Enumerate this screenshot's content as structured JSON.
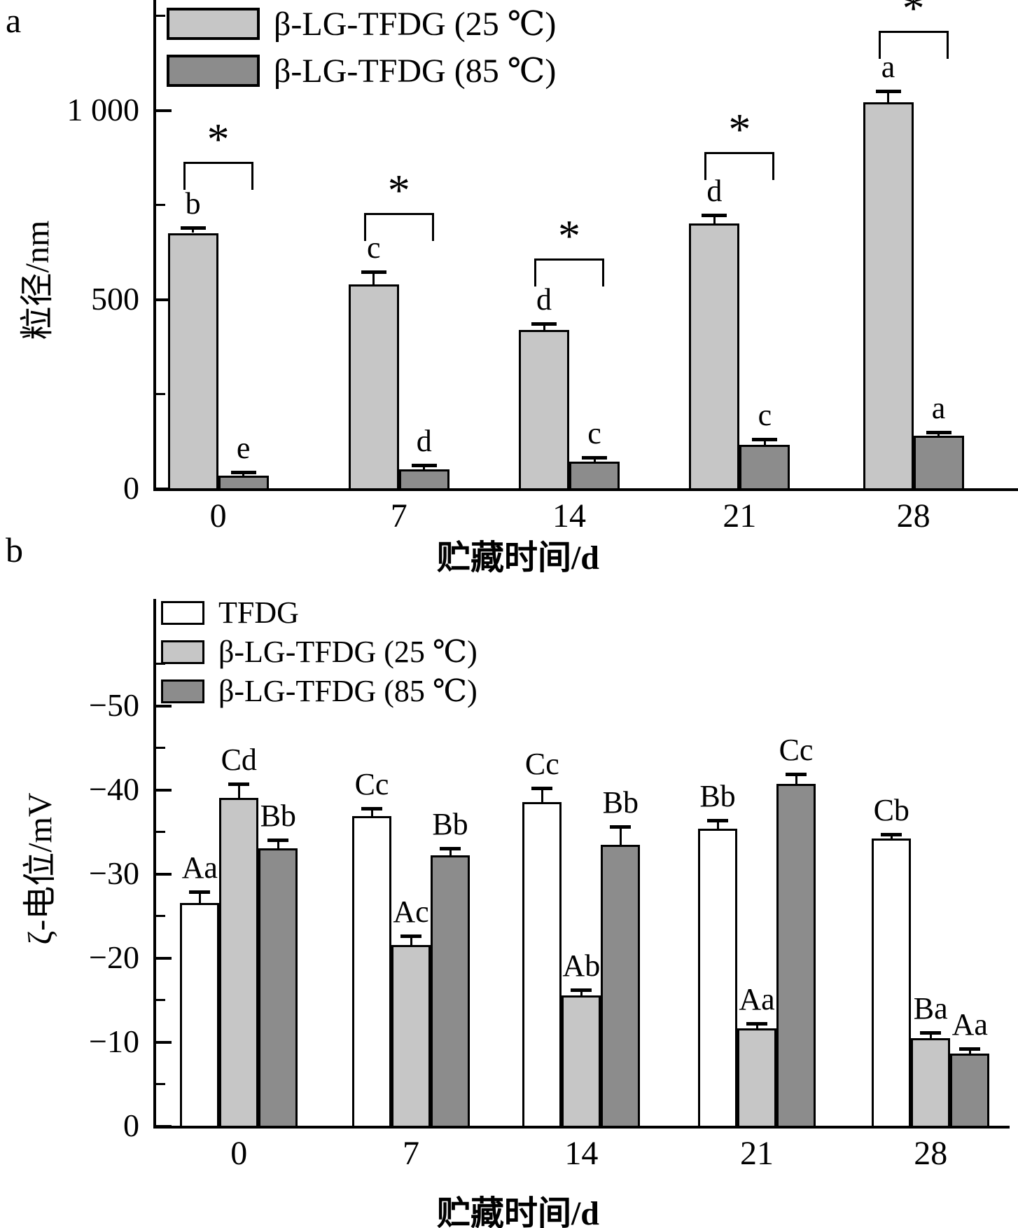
{
  "figure": {
    "panel_a_letter": "a",
    "panel_b_letter": "b",
    "colors": {
      "white": "#ffffff",
      "light_gray": "#c6c6c6",
      "dark_gray": "#8c8c8c",
      "outline": "#000000"
    }
  },
  "chart_data": [
    {
      "panel": "a",
      "type": "bar",
      "title": "",
      "xlabel": "贮藏时间/d",
      "ylabel": "粒径/nm",
      "categories": [
        "0",
        "7",
        "14",
        "21",
        "28"
      ],
      "ylim": [
        0,
        1290
      ],
      "yticks_major": [
        0,
        500,
        1000
      ],
      "ytick_labels": [
        "0",
        "500",
        "1 000"
      ],
      "yticks_minor": [
        250,
        750,
        1250
      ],
      "grid": false,
      "legend_position": "top-left-inside",
      "series": [
        {
          "name": "β-LG-TFDG (25 ℃)",
          "color_key": "light_gray",
          "values": [
            675,
            538,
            419,
            700,
            1020
          ],
          "errors": [
            10,
            30,
            12,
            18,
            26
          ],
          "letters": [
            "b",
            "c",
            "d",
            "d",
            "a"
          ]
        },
        {
          "name": "β-LG-TFDG (85 ℃)",
          "color_key": "dark_gray",
          "values": [
            33,
            50,
            70,
            115,
            138
          ],
          "errors": [
            5,
            8,
            8,
            11,
            6
          ],
          "letters": [
            "e",
            "d",
            "c",
            "c",
            "a"
          ]
        }
      ],
      "significance": {
        "symbol": "*",
        "pairs_at_categories": [
          "0",
          "7",
          "14",
          "21",
          "28"
        ]
      }
    },
    {
      "panel": "b",
      "type": "bar",
      "title": "",
      "xlabel": "贮藏时间/d",
      "ylabel": "ζ-电位/mV",
      "categories": [
        "0",
        "7",
        "14",
        "21",
        "28"
      ],
      "ylim": [
        0,
        -62
      ],
      "axis_inverted": true,
      "yticks_major": [
        0,
        -10,
        -20,
        -30,
        -40,
        -50
      ],
      "ytick_labels": [
        "0",
        "−10",
        "−20",
        "−30",
        "−40",
        "−50"
      ],
      "yticks_minor": [
        -5,
        -15,
        -25,
        -35,
        -45,
        -55
      ],
      "grid": false,
      "legend_position": "top-left-inside",
      "series": [
        {
          "name": "TFDG",
          "color_key": "white",
          "values": [
            -26.5,
            -36.8,
            -38.5,
            -35.3,
            -34.2
          ],
          "errors": [
            1.2,
            0.8,
            1.5,
            0.9,
            0.3
          ],
          "letters": [
            "Aa",
            "Cc",
            "Cc",
            "Bb",
            "Cb"
          ]
        },
        {
          "name": "β-LG-TFDG (25 ℃)",
          "color_key": "light_gray",
          "values": [
            -39,
            -21.5,
            -15.5,
            -11.6,
            -10.4
          ],
          "errors": [
            1.5,
            0.9,
            0.5,
            0.4,
            0.5
          ],
          "letters": [
            "Cd",
            "Ac",
            "Ab",
            "Aa",
            "Ba"
          ]
        },
        {
          "name": "β-LG-TFDG (85 ℃)",
          "color_key": "dark_gray",
          "values": [
            -33,
            -32.2,
            -33.4,
            -40.7,
            -8.6
          ],
          "errors": [
            0.8,
            0.6,
            2.0,
            1.0,
            0.4
          ],
          "letters": [
            "Bb",
            "Bb",
            "Bb",
            "Cc",
            "Aa"
          ]
        }
      ]
    }
  ]
}
